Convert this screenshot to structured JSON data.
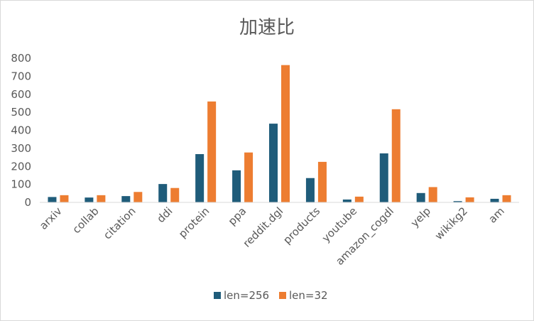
{
  "chart_data": {
    "type": "bar",
    "title": "加速比",
    "xlabel": "",
    "ylabel": "",
    "ylim": [
      0,
      800
    ],
    "yticks": [
      0,
      100,
      200,
      300,
      400,
      500,
      600,
      700,
      800
    ],
    "grid": false,
    "legend_position": "bottom",
    "categories": [
      "arxiv",
      "collab",
      "citation",
      "ddi",
      "protein",
      "ppa",
      "reddit.dgl",
      "products",
      "youtube",
      "amazon_cogdl",
      "yelp",
      "wikikg2",
      "am"
    ],
    "series": [
      {
        "name": "len=256",
        "color": "#1f5c7a",
        "values": [
          30,
          27,
          35,
          102,
          268,
          178,
          437,
          135,
          16,
          272,
          52,
          7,
          20
        ]
      },
      {
        "name": "len=32",
        "color": "#ed7d31",
        "values": [
          40,
          40,
          58,
          80,
          560,
          277,
          762,
          225,
          32,
          517,
          85,
          28,
          40
        ]
      }
    ]
  }
}
